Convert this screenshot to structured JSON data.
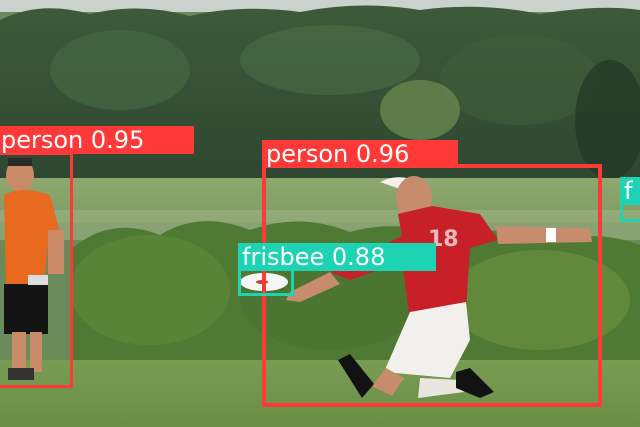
{
  "detections": [
    {
      "label": "person",
      "score": "0.95",
      "color": "#ff3838"
    },
    {
      "label": "person",
      "score": "0.96",
      "color": "#ff3838"
    },
    {
      "label": "frisbee",
      "score": "0.88",
      "color": "#1ed2b4"
    },
    {
      "label": "f",
      "score": "",
      "color": "#1ed2b4"
    }
  ]
}
